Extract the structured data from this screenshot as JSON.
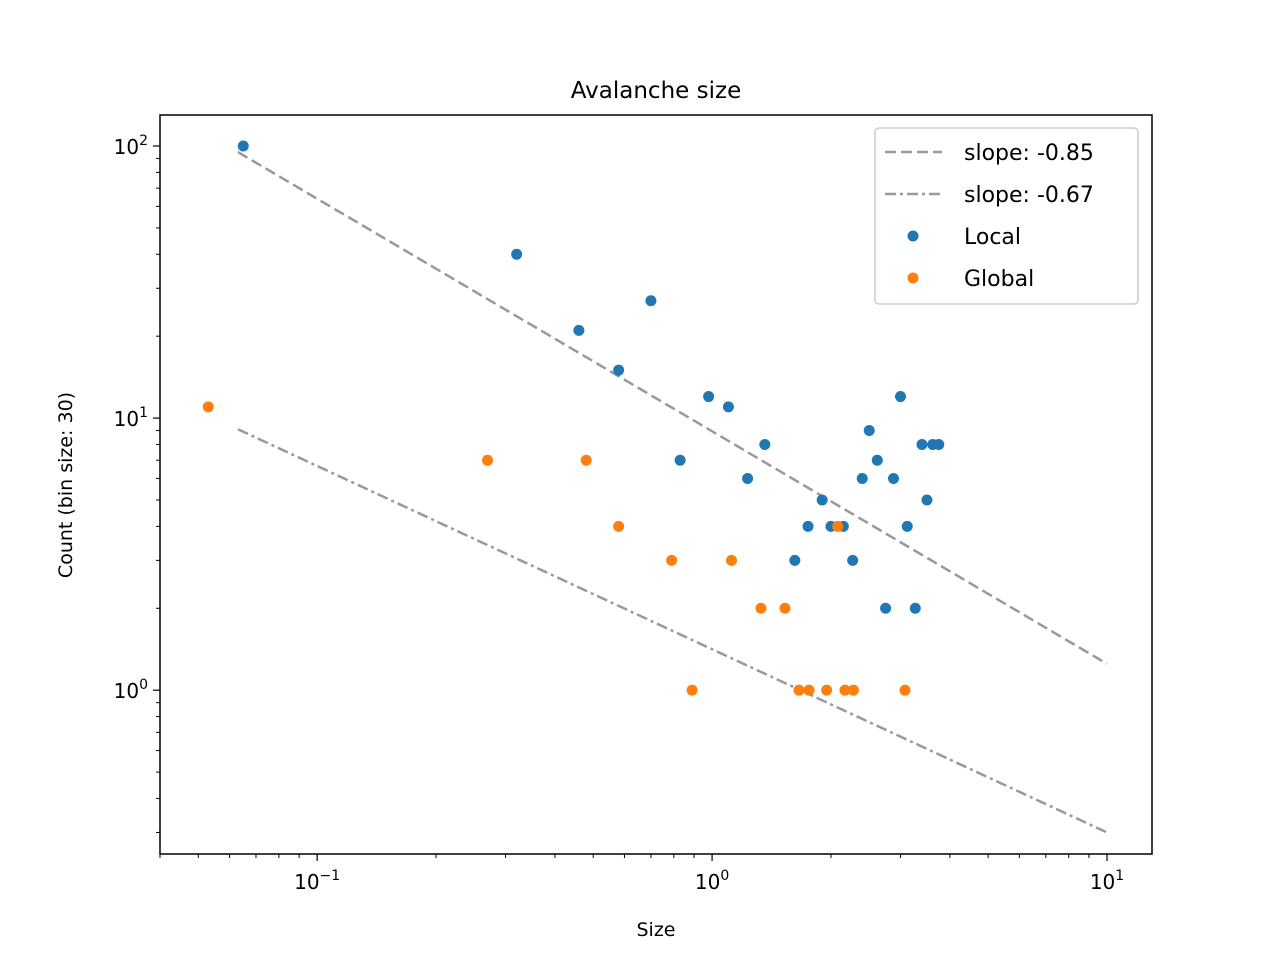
{
  "chart_data": {
    "type": "scatter",
    "title": "Avalanche size",
    "xlabel": "Size",
    "ylabel": "Count (bin size: 30)",
    "xscale": "log",
    "yscale": "log",
    "xlim": [
      0.04,
      13
    ],
    "ylim": [
      0.25,
      130
    ],
    "grid": false,
    "legend_position": "top-right",
    "x_ticks": [
      {
        "value": 0.1,
        "base": "10",
        "exp": "−1"
      },
      {
        "value": 1,
        "base": "10",
        "exp": "0"
      },
      {
        "value": 10,
        "base": "10",
        "exp": "1"
      }
    ],
    "y_ticks": [
      {
        "value": 1,
        "base": "10",
        "exp": "0"
      },
      {
        "value": 10,
        "base": "10",
        "exp": "1"
      },
      {
        "value": 100,
        "base": "10",
        "exp": "2"
      }
    ],
    "lines": [
      {
        "name": "slope: -0.85",
        "style": "dashed",
        "color": "#999999",
        "x": [
          0.063,
          10
        ],
        "y": [
          95,
          1.25
        ]
      },
      {
        "name": "slope: -0.67",
        "style": "dashdot",
        "color": "#999999",
        "x": [
          0.063,
          10
        ],
        "y": [
          9.1,
          0.3
        ]
      }
    ],
    "series": [
      {
        "name": "Local",
        "color": "#1f77b4",
        "points": [
          [
            0.065,
            100
          ],
          [
            0.32,
            40
          ],
          [
            0.46,
            21
          ],
          [
            0.58,
            15
          ],
          [
            0.7,
            27
          ],
          [
            0.83,
            7
          ],
          [
            0.98,
            12
          ],
          [
            1.1,
            11
          ],
          [
            1.23,
            6
          ],
          [
            1.36,
            8
          ],
          [
            1.62,
            3
          ],
          [
            1.75,
            4
          ],
          [
            1.9,
            5
          ],
          [
            2.0,
            4
          ],
          [
            2.15,
            4
          ],
          [
            2.27,
            3
          ],
          [
            2.4,
            6
          ],
          [
            2.5,
            9
          ],
          [
            2.62,
            7
          ],
          [
            2.75,
            2
          ],
          [
            2.88,
            6
          ],
          [
            3.0,
            12
          ],
          [
            3.12,
            4
          ],
          [
            3.27,
            2
          ],
          [
            3.4,
            8
          ],
          [
            3.5,
            5
          ],
          [
            3.62,
            8
          ],
          [
            3.75,
            8
          ]
        ]
      },
      {
        "name": "Global",
        "color": "#ff7f0e",
        "points": [
          [
            0.053,
            11
          ],
          [
            0.27,
            7
          ],
          [
            0.48,
            7
          ],
          [
            0.58,
            4
          ],
          [
            0.79,
            3
          ],
          [
            0.89,
            1
          ],
          [
            1.12,
            3
          ],
          [
            1.33,
            2
          ],
          [
            1.53,
            2
          ],
          [
            1.66,
            1
          ],
          [
            1.76,
            1
          ],
          [
            1.95,
            1
          ],
          [
            2.08,
            4
          ],
          [
            2.17,
            1
          ],
          [
            2.28,
            1
          ],
          [
            3.08,
            1
          ]
        ]
      }
    ]
  }
}
